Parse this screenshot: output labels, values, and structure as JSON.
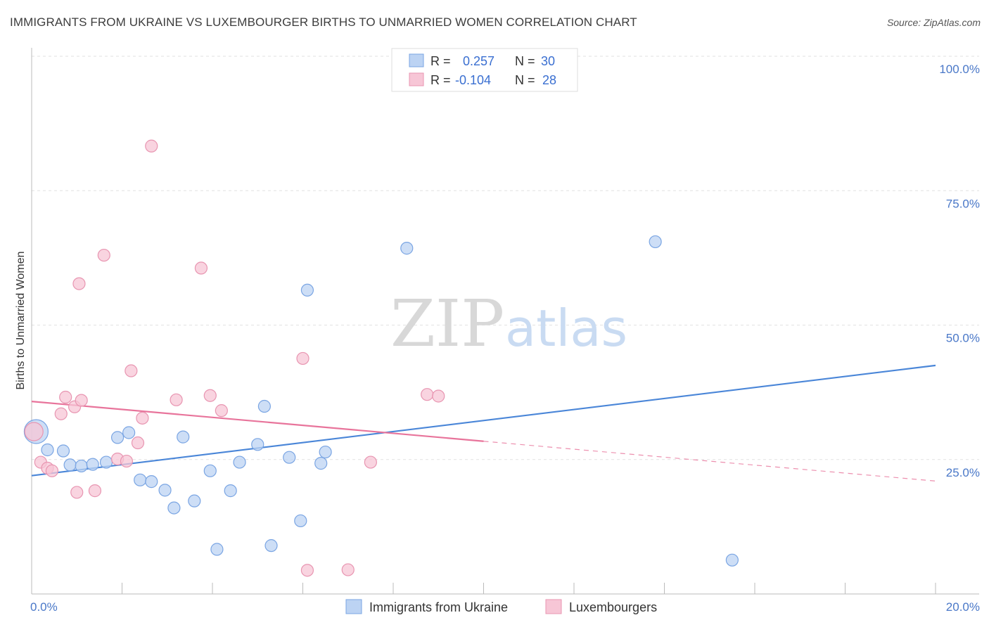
{
  "header": {
    "title": "IMMIGRANTS FROM UKRAINE VS LUXEMBOURGER BIRTHS TO UNMARRIED WOMEN CORRELATION CHART",
    "source": "Source: ZipAtlas.com"
  },
  "watermark": {
    "zip": "ZIP",
    "atlas": "atlas"
  },
  "legend": {
    "series": [
      {
        "r_label": "R =",
        "r_value": "0.257",
        "n_label": "N =",
        "n_value": "30"
      },
      {
        "r_label": "R =",
        "r_value": "-0.104",
        "n_label": "N =",
        "n_value": "28"
      }
    ]
  },
  "bottom_legend": {
    "items": [
      "Immigrants from Ukraine",
      "Luxembourgers"
    ]
  },
  "chart_data": {
    "type": "scatter",
    "title": "IMMIGRANTS FROM UKRAINE VS LUXEMBOURGER BIRTHS TO UNMARRIED WOMEN CORRELATION CHART",
    "xlabel": "",
    "ylabel": "Births to Unmarried Women",
    "xlim": [
      0,
      20
    ],
    "ylim": [
      0,
      100
    ],
    "x_tick_labels": [
      "0.0%",
      "20.0%"
    ],
    "y_tick_labels": [
      "100.0%",
      "75.0%",
      "50.0%",
      "25.0%"
    ],
    "y_tick_values": [
      100,
      75,
      50,
      25
    ],
    "grid": true,
    "colors": {
      "blue": "#4a86d8",
      "pink": "#e8749b",
      "blue_fill": "#bcd3f3",
      "pink_fill": "#f7c6d6"
    },
    "series": [
      {
        "name": "Immigrants from Ukraine",
        "color": "#4a86d8",
        "points": [
          [
            0.1,
            30.2
          ],
          [
            0.35,
            26.8
          ],
          [
            0.7,
            26.6
          ],
          [
            0.85,
            24.0
          ],
          [
            1.1,
            23.8
          ],
          [
            1.35,
            24.1
          ],
          [
            1.65,
            24.5
          ],
          [
            1.9,
            29.1
          ],
          [
            2.15,
            30.0
          ],
          [
            2.4,
            21.2
          ],
          [
            2.65,
            20.9
          ],
          [
            2.95,
            19.3
          ],
          [
            3.15,
            16.0
          ],
          [
            3.35,
            29.2
          ],
          [
            3.6,
            17.3
          ],
          [
            3.95,
            22.9
          ],
          [
            4.1,
            8.3
          ],
          [
            4.4,
            19.2
          ],
          [
            4.6,
            24.5
          ],
          [
            5.0,
            27.8
          ],
          [
            5.15,
            34.9
          ],
          [
            5.3,
            9.0
          ],
          [
            5.7,
            25.4
          ],
          [
            5.95,
            13.6
          ],
          [
            6.1,
            56.5
          ],
          [
            6.4,
            24.3
          ],
          [
            6.5,
            26.4
          ],
          [
            8.3,
            64.3
          ],
          [
            13.8,
            65.5
          ],
          [
            15.5,
            6.3
          ]
        ],
        "trend": {
          "x": [
            0,
            20
          ],
          "y": [
            22.0,
            42.5
          ],
          "dashed_from": null
        }
      },
      {
        "name": "Luxembourgers",
        "color": "#e8749b",
        "points": [
          [
            0.05,
            30.2
          ],
          [
            0.2,
            24.5
          ],
          [
            0.35,
            23.4
          ],
          [
            0.45,
            22.9
          ],
          [
            0.65,
            33.5
          ],
          [
            0.75,
            36.6
          ],
          [
            0.95,
            34.8
          ],
          [
            1.0,
            18.9
          ],
          [
            1.05,
            57.7
          ],
          [
            1.1,
            36.0
          ],
          [
            1.4,
            19.2
          ],
          [
            1.6,
            63.0
          ],
          [
            1.9,
            25.1
          ],
          [
            2.1,
            24.7
          ],
          [
            2.2,
            41.5
          ],
          [
            2.35,
            28.1
          ],
          [
            2.45,
            32.7
          ],
          [
            2.65,
            83.3
          ],
          [
            3.2,
            36.1
          ],
          [
            3.75,
            60.6
          ],
          [
            3.95,
            36.9
          ],
          [
            4.2,
            34.1
          ],
          [
            6.0,
            43.8
          ],
          [
            6.1,
            4.4
          ],
          [
            7.0,
            4.5
          ],
          [
            7.5,
            24.5
          ],
          [
            8.75,
            37.1
          ],
          [
            9.0,
            36.8
          ]
        ],
        "trend": {
          "x": [
            0,
            20
          ],
          "y": [
            35.8,
            21.0
          ],
          "dashed_from": 10
        }
      }
    ]
  }
}
